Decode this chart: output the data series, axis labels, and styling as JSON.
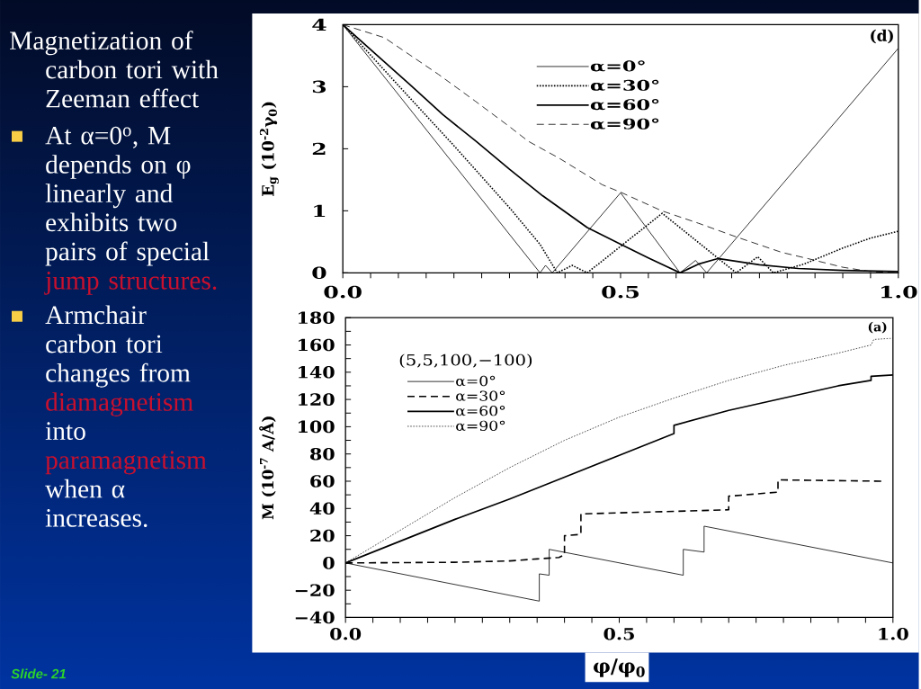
{
  "chart_data": [
    {
      "type": "other",
      "title": "Magnetization of carbon tori with Zeeman effect",
      "annotations": [
        "At α=0$^{o}$, M depends on φ linearly and exhibits two pairs of special",
        "jump structures.",
        "Armchair carbon tori changes from",
        "diamagnetism",
        "into",
        "paramagnetism",
        "when α increases.",
        "Slide- 21"
      ]
    },
    {
      "type": "line",
      "ylabel": "E$_{g}$ (10$^{-2}$γ$_{0}$)",
      "xlim": [
        0,
        1
      ],
      "ylim": [
        0,
        4
      ],
      "xticks": [
        {
          "value": 0,
          "label": "0.0"
        },
        {
          "value": 0.05,
          "label": null
        },
        {
          "value": 0.1,
          "label": null
        },
        {
          "value": 0.15,
          "label": null
        },
        {
          "value": 0.2,
          "label": null
        },
        {
          "value": 0.25,
          "label": null
        },
        {
          "value": 0.3,
          "label": null
        },
        {
          "value": 0.35,
          "label": null
        },
        {
          "value": 0.4,
          "label": null
        },
        {
          "value": 0.45,
          "label": null
        },
        {
          "value": 0.5,
          "label": "0.5"
        },
        {
          "value": 0.55,
          "label": null
        },
        {
          "value": 0.6,
          "label": null
        },
        {
          "value": 0.65,
          "label": null
        },
        {
          "value": 0.7,
          "label": null
        },
        {
          "value": 0.75,
          "label": null
        },
        {
          "value": 0.8,
          "label": null
        },
        {
          "value": 0.85,
          "label": null
        },
        {
          "value": 0.9,
          "label": null
        },
        {
          "value": 0.95,
          "label": null
        },
        {
          "value": 1,
          "label": "1.0"
        }
      ],
      "yticks": [
        0,
        1,
        2,
        3,
        4
      ],
      "legend": "top",
      "annotations": [
        "(d)"
      ],
      "series": [
        {
          "name": "α=0°",
          "color": "#000000",
          "line_style": "solid",
          "x": [
            0,
            0.355,
            0.365,
            0.377,
            0.5,
            0.607,
            0.635,
            0.655,
            1
          ],
          "values": [
            4,
            0,
            0.12,
            0,
            1.29,
            0,
            0.2,
            0,
            3.62
          ]
        },
        {
          "name": "α=30°",
          "color": "#000000",
          "line_style": "dotted",
          "x": [
            0,
            0.1,
            0.2,
            0.3,
            0.355,
            0.386,
            0.413,
            0.44,
            0.575,
            0.708,
            0.747,
            0.775,
            0.83,
            0.9,
            0.95,
            1
          ],
          "values": [
            4,
            3.02,
            2.05,
            1.05,
            0.46,
            0,
            0.12,
            0,
            0.96,
            0,
            0.26,
            0,
            0.14,
            0.4,
            0.56,
            0.67
          ]
        },
        {
          "name": "α=60°",
          "color": "#000000",
          "line_style": "solid",
          "x": [
            0,
            0.06,
            0.12,
            0.18,
            0.24,
            0.3,
            0.36,
            0.44,
            0.5,
            0.55,
            0.607,
            0.64,
            0.675,
            0.75,
            0.82,
            0.9,
            1
          ],
          "values": [
            4,
            3.52,
            3.04,
            2.55,
            2.12,
            1.67,
            1.24,
            0.73,
            0.46,
            0.24,
            0,
            0.14,
            0.23,
            0.13,
            0.07,
            0.04,
            0.02
          ]
        },
        {
          "name": "α=90°",
          "color": "#000000",
          "line_style": "dashed",
          "x": [
            0,
            0.075,
            0.172,
            0.238,
            0.298,
            0.334,
            0.389,
            0.467,
            0.5,
            0.574,
            0.64,
            0.708,
            0.79,
            0.837,
            0.9,
            0.95,
            1
          ],
          "values": [
            4,
            3.79,
            3.2,
            2.77,
            2.37,
            2.12,
            1.85,
            1.42,
            1.3,
            1.0,
            0.8,
            0.58,
            0.33,
            0.23,
            0.09,
            0.02,
            0
          ]
        }
      ]
    },
    {
      "type": "line",
      "xlabel": "φ/φ$_{0}$",
      "ylabel": "M (10$^{-7}$ A/Å)",
      "xlim": [
        0,
        1
      ],
      "ylim": [
        -40,
        180
      ],
      "xticks": [
        {
          "value": 0,
          "label": "0.0"
        },
        {
          "value": 0.05,
          "label": null
        },
        {
          "value": 0.1,
          "label": null
        },
        {
          "value": 0.15,
          "label": null
        },
        {
          "value": 0.2,
          "label": null
        },
        {
          "value": 0.25,
          "label": null
        },
        {
          "value": 0.3,
          "label": null
        },
        {
          "value": 0.35,
          "label": null
        },
        {
          "value": 0.4,
          "label": null
        },
        {
          "value": 0.45,
          "label": null
        },
        {
          "value": 0.5,
          "label": "0.5"
        },
        {
          "value": 0.55,
          "label": null
        },
        {
          "value": 0.6,
          "label": null
        },
        {
          "value": 0.65,
          "label": null
        },
        {
          "value": 0.7,
          "label": null
        },
        {
          "value": 0.75,
          "label": null
        },
        {
          "value": 0.8,
          "label": null
        },
        {
          "value": 0.85,
          "label": null
        },
        {
          "value": 0.9,
          "label": null
        },
        {
          "value": 0.95,
          "label": null
        },
        {
          "value": 1,
          "label": "1.0"
        }
      ],
      "yticks": [
        {
          "value": -40,
          "label": "−40"
        },
        {
          "value": -30,
          "label": null
        },
        {
          "value": -20,
          "label": "−20"
        },
        {
          "value": -10,
          "label": null
        },
        0,
        {
          "value": 10,
          "label": null
        },
        20,
        {
          "value": 30,
          "label": null
        },
        40,
        {
          "value": 50,
          "label": null
        },
        60,
        {
          "value": 70,
          "label": null
        },
        80,
        {
          "value": 90,
          "label": null
        },
        100,
        {
          "value": 110,
          "label": null
        },
        120,
        {
          "value": 130,
          "label": null
        },
        140,
        {
          "value": 150,
          "label": null
        },
        160,
        {
          "value": 170,
          "label": null
        },
        180
      ],
      "legend": "top left",
      "legend_title": "(5,5,100,−100)",
      "annotations": [
        "(a)"
      ],
      "series": [
        {
          "name": "α=0°",
          "color": "#000000",
          "line_style": "solid",
          "x": [
            0,
            0.354,
            0.354,
            0.372,
            0.372,
            0.617,
            0.617,
            0.655,
            0.655,
            1
          ],
          "values": [
            0,
            -28,
            -8,
            -9,
            10,
            -9,
            10,
            8,
            27,
            0
          ]
        },
        {
          "name": "α=30°",
          "color": "#000000",
          "line_style": "dashed",
          "x": [
            0,
            0.2,
            0.3,
            0.35,
            0.39,
            0.4,
            0.4,
            0.43,
            0.43,
            0.7,
            0.7,
            0.79,
            0.79,
            0.98
          ],
          "values": [
            0,
            0.5,
            1.5,
            3,
            4,
            6,
            20,
            21,
            36,
            39,
            49,
            52,
            61,
            60
          ]
        },
        {
          "name": "α=60°",
          "color": "#000000",
          "line_style": "solid",
          "x": [
            0,
            0.1,
            0.2,
            0.3,
            0.4,
            0.5,
            0.6,
            0.6,
            0.7,
            0.8,
            0.9,
            0.96,
            0.96,
            1
          ],
          "values": [
            0,
            16,
            32,
            47,
            63,
            79,
            95,
            101,
            112,
            121,
            130,
            134,
            137,
            138
          ]
        },
        {
          "name": "α=90°",
          "color": "#000000",
          "line_style": "dotted",
          "x": [
            0,
            0.1,
            0.2,
            0.3,
            0.4,
            0.5,
            0.6,
            0.7,
            0.8,
            0.9,
            0.96,
            0.965,
            1
          ],
          "values": [
            0,
            24,
            48,
            70,
            90,
            107,
            121,
            134,
            145,
            154,
            160,
            164,
            165
          ]
        }
      ]
    }
  ]
}
